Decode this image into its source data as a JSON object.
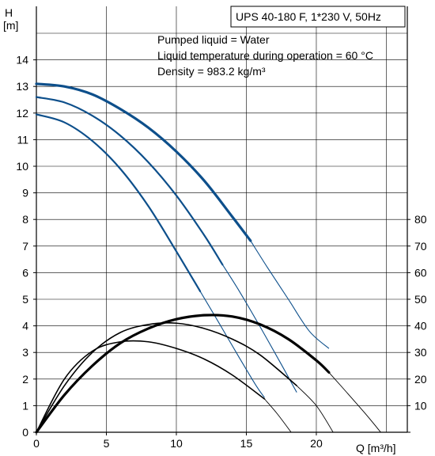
{
  "chart_data": {
    "type": "line",
    "title_box": "UPS 40-180 F, 1*230 V, 50Hz",
    "info_lines": [
      "Pumped liquid = Water",
      "Liquid temperature during operation = 60 °C",
      "Density = 983.2 kg/m³"
    ],
    "ylabel_symbol": "H",
    "ylabel_unit": "[m]",
    "xlabel": "Q [m³/h]",
    "xlim": [
      0,
      26.5
    ],
    "ylim": [
      0,
      15
    ],
    "y2lim": [
      0,
      150
    ],
    "x_ticks": [
      0,
      5,
      10,
      15,
      20
    ],
    "y_ticks": [
      0,
      1,
      2,
      3,
      4,
      5,
      6,
      7,
      8,
      9,
      10,
      11,
      12,
      13,
      14
    ],
    "y2_ticks": [
      10,
      20,
      30,
      40,
      50,
      60,
      70,
      80
    ],
    "grid": true,
    "colors": {
      "head": "#0d4f8b",
      "power": "#000000"
    },
    "head_curves": [
      {
        "speed": 3,
        "x": [
          0,
          2,
          4,
          6,
          8,
          10,
          12,
          14,
          15.3
        ],
        "y": [
          13.1,
          13.0,
          12.7,
          12.15,
          11.45,
          10.55,
          9.45,
          8.1,
          7.2
        ],
        "extension": {
          "x": [
            15.3,
            16.5,
            18,
            19.5,
            20.9
          ],
          "y": [
            7.2,
            6.2,
            5.0,
            3.8,
            3.15
          ]
        }
      },
      {
        "speed": 2,
        "x": [
          0,
          2,
          4,
          6,
          8,
          10,
          12,
          13.3
        ],
        "y": [
          12.6,
          12.4,
          11.9,
          11.15,
          10.15,
          8.9,
          7.4,
          6.3
        ],
        "extension": {
          "x": [
            13.3,
            14.5,
            16,
            17.5,
            18.6
          ],
          "y": [
            6.3,
            5.3,
            3.95,
            2.55,
            1.5
          ]
        }
      },
      {
        "speed": 1,
        "x": [
          0,
          2,
          4,
          6,
          8,
          10,
          11.7
        ],
        "y": [
          11.95,
          11.65,
          10.95,
          9.9,
          8.5,
          6.8,
          5.3
        ],
        "extension": {
          "x": [
            11.7,
            13,
            14.5,
            15.7,
            16.3
          ],
          "y": [
            5.3,
            4.15,
            2.8,
            1.75,
            1.3
          ]
        }
      }
    ],
    "power_curves": [
      {
        "speed": 3,
        "x": [
          0,
          2,
          4,
          6,
          8,
          10,
          12,
          14,
          16,
          18,
          20,
          20.9
        ],
        "y": [
          0,
          14,
          25,
          33.5,
          39,
          42.5,
          44,
          43.5,
          40.5,
          35,
          27,
          22.5
        ],
        "extension": {
          "x": [
            20.9,
            22,
            23.5,
            24.6
          ],
          "y": [
            22.5,
            16,
            7,
            0
          ]
        }
      },
      {
        "speed": 2,
        "x": [
          0,
          2,
          4,
          6,
          8,
          10,
          12,
          14,
          16,
          18.6
        ],
        "y": [
          0,
          17.5,
          30,
          37.5,
          40.5,
          41,
          39,
          35,
          29,
          17.5
        ],
        "extension": {
          "x": [
            18.6,
            20,
            21.2
          ],
          "y": [
            17.5,
            10,
            0
          ]
        }
      },
      {
        "speed": 1,
        "x": [
          0,
          2,
          4,
          6,
          8,
          10,
          12,
          14,
          16.3
        ],
        "y": [
          0,
          20,
          30.5,
          34,
          34,
          31.5,
          27.5,
          21.5,
          12.5
        ],
        "extension": {
          "x": [
            16.3,
            17.2,
            18.2
          ],
          "y": [
            12.5,
            7,
            0
          ]
        }
      }
    ]
  }
}
